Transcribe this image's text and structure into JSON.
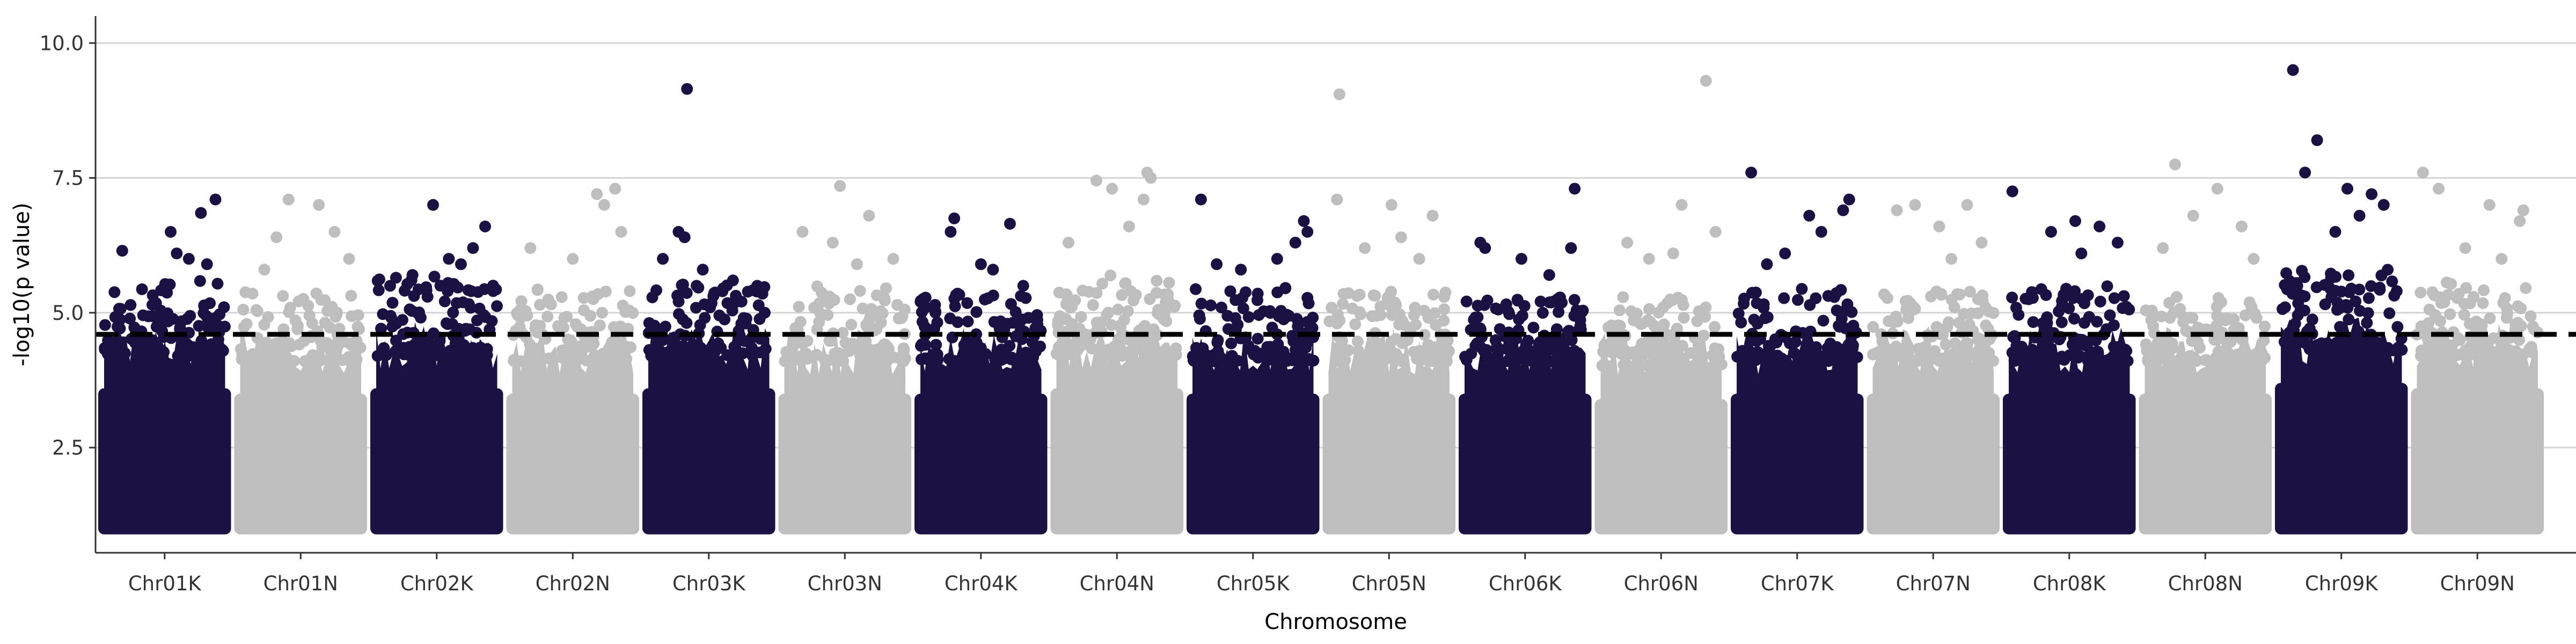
{
  "chart_data": {
    "type": "scatter",
    "title": "",
    "xlabel": "Chromosome",
    "ylabel": "-log10(p value)",
    "ylim": [
      0.55,
      10.5
    ],
    "yticks": [
      2.5,
      5.0,
      7.5,
      10.0
    ],
    "ytick_labels": [
      "2.5",
      "5.0",
      "7.5",
      "10.0"
    ],
    "grid": "horizontal major lines",
    "legend": "none",
    "threshold": {
      "value": 4.6,
      "style": "dashed",
      "color": "#000000"
    },
    "colors": {
      "dark": "#1c1142",
      "light": "#bebebe",
      "axis": "#333333",
      "grid": "#d4d4d4"
    },
    "floor": 1.0,
    "categories": [
      "Chr01K",
      "Chr01N",
      "Chr02K",
      "Chr02N",
      "Chr03K",
      "Chr03N",
      "Chr04K",
      "Chr04N",
      "Chr05K",
      "Chr05N",
      "Chr06K",
      "Chr06N",
      "Chr07K",
      "Chr07N",
      "Chr08K",
      "Chr08N",
      "Chr09K",
      "Chr09N"
    ],
    "series": [
      {
        "category": "Chr01K",
        "color": "dark",
        "dense_top": 4.4,
        "upper_band": 5.4,
        "points": [
          [
            0.15,
            6.15
          ],
          [
            0.55,
            6.5
          ],
          [
            0.8,
            6.85
          ],
          [
            0.92,
            7.1
          ],
          [
            0.6,
            6.1
          ],
          [
            0.7,
            6.0
          ],
          [
            0.85,
            5.9
          ]
        ]
      },
      {
        "category": "Chr01N",
        "color": "light",
        "dense_top": 4.3,
        "upper_band": 5.2,
        "points": [
          [
            0.4,
            7.1
          ],
          [
            0.65,
            7.0
          ],
          [
            0.3,
            6.4
          ],
          [
            0.78,
            6.5
          ],
          [
            0.9,
            6.0
          ],
          [
            0.2,
            5.8
          ]
        ]
      },
      {
        "category": "Chr02K",
        "color": "dark",
        "dense_top": 4.4,
        "upper_band": 5.5,
        "points": [
          [
            0.47,
            7.0
          ],
          [
            0.9,
            6.6
          ],
          [
            0.6,
            6.0
          ],
          [
            0.7,
            5.9
          ],
          [
            0.8,
            6.2
          ],
          [
            0.3,
            5.7
          ]
        ]
      },
      {
        "category": "Chr02N",
        "color": "light",
        "dense_top": 4.3,
        "upper_band": 5.3,
        "points": [
          [
            0.7,
            7.2
          ],
          [
            0.85,
            7.3
          ],
          [
            0.76,
            7.0
          ],
          [
            0.15,
            6.2
          ],
          [
            0.9,
            6.5
          ],
          [
            0.5,
            6.0
          ]
        ]
      },
      {
        "category": "Chr03K",
        "color": "dark",
        "dense_top": 4.4,
        "upper_band": 5.4,
        "points": [
          [
            0.32,
            9.15
          ],
          [
            0.25,
            6.5
          ],
          [
            0.3,
            6.4
          ],
          [
            0.12,
            6.0
          ],
          [
            0.45,
            5.8
          ],
          [
            0.7,
            5.6
          ],
          [
            0.9,
            5.5
          ]
        ]
      },
      {
        "category": "Chr03N",
        "color": "light",
        "dense_top": 4.3,
        "upper_band": 5.3,
        "points": [
          [
            0.46,
            7.35
          ],
          [
            0.7,
            6.8
          ],
          [
            0.15,
            6.5
          ],
          [
            0.4,
            6.3
          ],
          [
            0.9,
            6.0
          ],
          [
            0.6,
            5.9
          ]
        ]
      },
      {
        "category": "Chr04K",
        "color": "dark",
        "dense_top": 4.3,
        "upper_band": 5.2,
        "points": [
          [
            0.28,
            6.75
          ],
          [
            0.74,
            6.65
          ],
          [
            0.25,
            6.5
          ],
          [
            0.5,
            5.9
          ],
          [
            0.6,
            5.8
          ],
          [
            0.85,
            5.5
          ]
        ]
      },
      {
        "category": "Chr04N",
        "color": "light",
        "dense_top": 4.4,
        "upper_band": 5.5,
        "points": [
          [
            0.75,
            7.6
          ],
          [
            0.78,
            7.5
          ],
          [
            0.33,
            7.45
          ],
          [
            0.46,
            7.3
          ],
          [
            0.72,
            7.1
          ],
          [
            0.1,
            6.3
          ],
          [
            0.6,
            6.6
          ]
        ]
      },
      {
        "category": "Chr05K",
        "color": "dark",
        "dense_top": 4.3,
        "upper_band": 5.3,
        "points": [
          [
            0.07,
            7.1
          ],
          [
            0.92,
            6.7
          ],
          [
            0.95,
            6.5
          ],
          [
            0.85,
            6.3
          ],
          [
            0.7,
            6.0
          ],
          [
            0.4,
            5.8
          ],
          [
            0.2,
            5.9
          ]
        ]
      },
      {
        "category": "Chr05N",
        "color": "light",
        "dense_top": 4.3,
        "upper_band": 5.2,
        "points": [
          [
            0.09,
            9.05
          ],
          [
            0.07,
            7.1
          ],
          [
            0.52,
            7.0
          ],
          [
            0.86,
            6.8
          ],
          [
            0.3,
            6.2
          ],
          [
            0.6,
            6.4
          ],
          [
            0.75,
            6.0
          ]
        ]
      },
      {
        "category": "Chr06K",
        "color": "dark",
        "dense_top": 4.3,
        "upper_band": 5.1,
        "points": [
          [
            0.91,
            7.3
          ],
          [
            0.13,
            6.3
          ],
          [
            0.17,
            6.2
          ],
          [
            0.47,
            6.0
          ],
          [
            0.7,
            5.7
          ],
          [
            0.88,
            6.2
          ]
        ]
      },
      {
        "category": "Chr06N",
        "color": "light",
        "dense_top": 4.2,
        "upper_band": 5.1,
        "points": [
          [
            0.87,
            9.3
          ],
          [
            0.67,
            7.0
          ],
          [
            0.22,
            6.3
          ],
          [
            0.4,
            6.0
          ],
          [
            0.6,
            6.1
          ],
          [
            0.95,
            6.5
          ]
        ]
      },
      {
        "category": "Chr07K",
        "color": "dark",
        "dense_top": 4.3,
        "upper_band": 5.3,
        "points": [
          [
            0.12,
            7.6
          ],
          [
            0.93,
            7.1
          ],
          [
            0.88,
            6.9
          ],
          [
            0.6,
            6.8
          ],
          [
            0.7,
            6.5
          ],
          [
            0.4,
            6.1
          ],
          [
            0.25,
            5.9
          ]
        ]
      },
      {
        "category": "Chr07N",
        "color": "light",
        "dense_top": 4.3,
        "upper_band": 5.2,
        "points": [
          [
            0.35,
            7.0
          ],
          [
            0.78,
            7.0
          ],
          [
            0.2,
            6.9
          ],
          [
            0.55,
            6.6
          ],
          [
            0.9,
            6.3
          ],
          [
            0.65,
            6.0
          ]
        ]
      },
      {
        "category": "Chr08K",
        "color": "dark",
        "dense_top": 4.3,
        "upper_band": 5.3,
        "points": [
          [
            0.03,
            7.25
          ],
          [
            0.55,
            6.7
          ],
          [
            0.35,
            6.5
          ],
          [
            0.75,
            6.6
          ],
          [
            0.9,
            6.3
          ],
          [
            0.6,
            6.1
          ]
        ]
      },
      {
        "category": "Chr08N",
        "color": "light",
        "dense_top": 4.3,
        "upper_band": 5.1,
        "points": [
          [
            0.25,
            7.75
          ],
          [
            0.6,
            7.3
          ],
          [
            0.4,
            6.8
          ],
          [
            0.8,
            6.6
          ],
          [
            0.15,
            6.2
          ],
          [
            0.9,
            6.0
          ]
        ]
      },
      {
        "category": "Chr09K",
        "color": "dark",
        "dense_top": 4.5,
        "upper_band": 5.6,
        "points": [
          [
            0.1,
            9.5
          ],
          [
            0.3,
            8.2
          ],
          [
            0.2,
            7.6
          ],
          [
            0.55,
            7.3
          ],
          [
            0.75,
            7.2
          ],
          [
            0.85,
            7.0
          ],
          [
            0.65,
            6.8
          ],
          [
            0.45,
            6.5
          ]
        ]
      },
      {
        "category": "Chr09N",
        "color": "light",
        "dense_top": 4.4,
        "upper_band": 5.4,
        "points": [
          [
            0.05,
            7.6
          ],
          [
            0.18,
            7.3
          ],
          [
            0.6,
            7.0
          ],
          [
            0.88,
            6.9
          ],
          [
            0.85,
            6.7
          ],
          [
            0.4,
            6.2
          ],
          [
            0.7,
            6.0
          ]
        ]
      }
    ]
  }
}
